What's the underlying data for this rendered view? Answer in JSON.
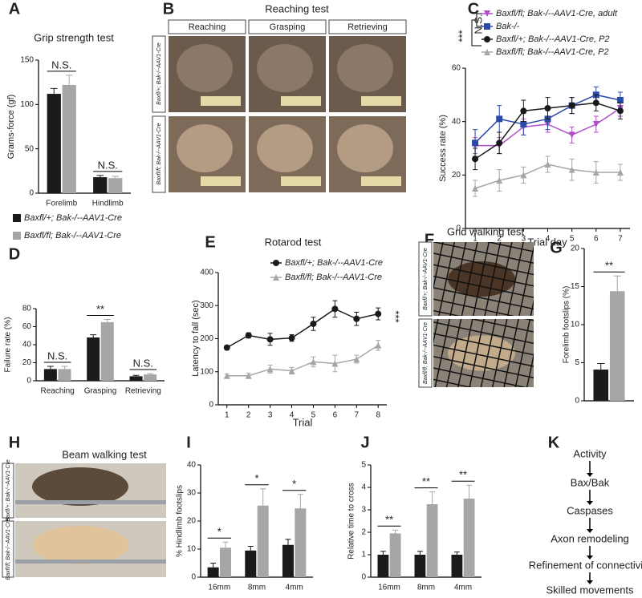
{
  "panel_labels": [
    "A",
    "B",
    "C",
    "D",
    "E",
    "F",
    "G",
    "H",
    "I",
    "J",
    "K"
  ],
  "chart_data": [
    {
      "type": "bar",
      "title": "Grip strength test",
      "y_label": "Grams-force (gf)",
      "categories": [
        "Forelimb",
        "Hindlimb"
      ],
      "ylim": [
        0,
        150
      ],
      "yticks": [
        0,
        50,
        100,
        150
      ],
      "series": [
        {
          "name": "Baxfl/+; Bak-/--AAV1-Cre",
          "color": "#1a1a1a",
          "values": [
            112,
            18
          ],
          "errors": [
            6,
            2
          ]
        },
        {
          "name": "Baxfl/fl; Bak-/--AAV1-Cre",
          "color": "#a6a6a6",
          "values": [
            122,
            17
          ],
          "errors": [
            11,
            2
          ]
        }
      ],
      "annotations": [
        "N.S.",
        "N.S."
      ]
    },
    {
      "type": "line",
      "y_label": "Success rate (%)",
      "x_label": "Trial day",
      "x": [
        1,
        2,
        3,
        4,
        5,
        6,
        7
      ],
      "xlim": [
        0.6,
        7.4
      ],
      "xticks": [
        1,
        2,
        3,
        4,
        5,
        6,
        7
      ],
      "ylim": [
        0,
        60
      ],
      "yticks": [
        0,
        20,
        40,
        60
      ],
      "series": [
        {
          "name": "Baxfl/fl; Bak-/--AAV1-Cre, adult",
          "color": "#b04cc8",
          "marker": "triangle-down",
          "values": [
            31,
            31,
            38,
            39,
            35,
            39,
            45
          ],
          "errors": [
            3,
            3,
            3,
            3,
            3,
            3,
            3
          ]
        },
        {
          "name": "Bak-/-",
          "color": "#2b4aa8",
          "marker": "square",
          "values": [
            32,
            41,
            39,
            41,
            46,
            50,
            48
          ],
          "errors": [
            5,
            5,
            4,
            4,
            3,
            3,
            3
          ]
        },
        {
          "name": "Baxfl/+; Bak-/--AAV1-Cre, P2",
          "color": "#1a1a1a",
          "marker": "circle",
          "values": [
            26,
            32,
            44,
            45,
            46,
            47,
            44
          ],
          "errors": [
            4,
            4,
            4,
            4,
            3,
            3,
            3
          ]
        },
        {
          "name": "Baxfl/fl; Bak-/--AAV1-Cre, P2",
          "color": "#a6a6a6",
          "marker": "triangle-up",
          "values": [
            15,
            18,
            20,
            24,
            22,
            21,
            21
          ],
          "errors": [
            3,
            4,
            3,
            3,
            4,
            4,
            3
          ]
        }
      ],
      "annotations": [
        "***",
        "N.S."
      ]
    },
    {
      "type": "bar",
      "y_label": "Failure rate (%)",
      "categories": [
        "Reaching",
        "Grasping",
        "Retrieving"
      ],
      "ylim": [
        0,
        80
      ],
      "yticks": [
        0,
        20,
        40,
        60,
        80
      ],
      "series": [
        {
          "color": "#1a1a1a",
          "values": [
            13,
            48,
            5
          ],
          "errors": [
            3,
            3,
            1
          ]
        },
        {
          "color": "#a6a6a6",
          "values": [
            13,
            65,
            7
          ],
          "errors": [
            3,
            3,
            1
          ]
        }
      ],
      "annotations": [
        "N.S.",
        "**",
        "N.S."
      ]
    },
    {
      "type": "line",
      "title": "Rotarod test",
      "y_label": "Latency to fall (sec)",
      "x_label": "Trial",
      "x": [
        1,
        2,
        3,
        4,
        5,
        6,
        7,
        8
      ],
      "xlim": [
        0.6,
        8.4
      ],
      "xticks": [
        1,
        2,
        3,
        4,
        5,
        6,
        7,
        8
      ],
      "ylim": [
        0,
        400
      ],
      "yticks": [
        0,
        100,
        200,
        300,
        400
      ],
      "series": [
        {
          "name": "Baxfl/+; Bak-/--AAV1-Cre",
          "color": "#1a1a1a",
          "marker": "circle",
          "values": [
            173,
            210,
            198,
            202,
            245,
            290,
            260,
            275
          ],
          "errors": [
            6,
            8,
            18,
            10,
            20,
            25,
            20,
            18
          ]
        },
        {
          "name": "Baxfl/fl; Bak-/--AAV1-Cre",
          "color": "#a6a6a6",
          "marker": "triangle-up",
          "values": [
            88,
            88,
            108,
            103,
            130,
            125,
            138,
            180
          ],
          "errors": [
            5,
            8,
            12,
            10,
            15,
            25,
            12,
            15
          ]
        }
      ],
      "annotations": [
        "***"
      ]
    },
    {
      "type": "bar",
      "y_label": "Forelimb footslips (%)",
      "categories": [
        null
      ],
      "ylim": [
        0,
        20
      ],
      "yticks": [
        0,
        5,
        10,
        15,
        20
      ],
      "series": [
        {
          "color": "#1a1a1a",
          "values": [
            4.1
          ],
          "errors": [
            0.8
          ]
        },
        {
          "color": "#a6a6a6",
          "values": [
            14.4
          ],
          "errors": [
            2
          ]
        }
      ],
      "annotations": [
        "**"
      ]
    },
    {
      "type": "bar",
      "y_label": "% Hindlimb footslips",
      "categories": [
        "16mm",
        "8mm",
        "4mm"
      ],
      "ylim": [
        0,
        40
      ],
      "yticks": [
        0,
        10,
        20,
        30,
        40
      ],
      "series": [
        {
          "color": "#1a1a1a",
          "values": [
            3.5,
            9.5,
            11.5
          ],
          "errors": [
            1.5,
            1.5,
            2
          ]
        },
        {
          "color": "#a6a6a6",
          "values": [
            10.5,
            25.5,
            24.5
          ],
          "errors": [
            2,
            6,
            5
          ]
        }
      ],
      "annotations": [
        "*",
        "*",
        "*"
      ]
    },
    {
      "type": "bar",
      "y_label": "Relative time to cross",
      "categories": [
        "16mm",
        "8mm",
        "4mm"
      ],
      "ylim": [
        0,
        5
      ],
      "yticks": [
        0,
        1,
        2,
        3,
        4,
        5
      ],
      "series": [
        {
          "color": "#1a1a1a",
          "values": [
            1,
            1,
            1
          ],
          "errors": [
            0.15,
            0.15,
            0.12
          ]
        },
        {
          "color": "#a6a6a6",
          "values": [
            1.95,
            3.25,
            3.5
          ],
          "errors": [
            0.15,
            0.55,
            0.6
          ]
        }
      ],
      "annotations": [
        "**",
        "**",
        "**"
      ]
    }
  ],
  "reaching_test": {
    "title": "Reaching test",
    "columns": [
      "Reaching",
      "Grasping",
      "Retrieving"
    ],
    "rows": [
      "Baxfl/+; Bak-/--AAV1-Cre",
      "Baxfl/fl; Bak-/--AAV1-Cre"
    ]
  },
  "grid_walking_test": {
    "title": "Grid walking test",
    "rows": [
      "Baxfl/+; Bak-/--AAV1-Cre",
      "Baxfl/fl; Bak-/--AAV1-Cre"
    ]
  },
  "beam_walking_test": {
    "title": "Beam walking test",
    "rows": [
      "Baxfl/+; Bak-/--AAV1-Cre",
      "Baxfl/fl; Bak-/--AAV1-Cre"
    ]
  },
  "flow": {
    "steps": [
      "Activity",
      "Bax/Bak",
      "Caspases",
      "Axon remodeling",
      "Refinement of connectivity",
      "Skilled movements"
    ]
  }
}
